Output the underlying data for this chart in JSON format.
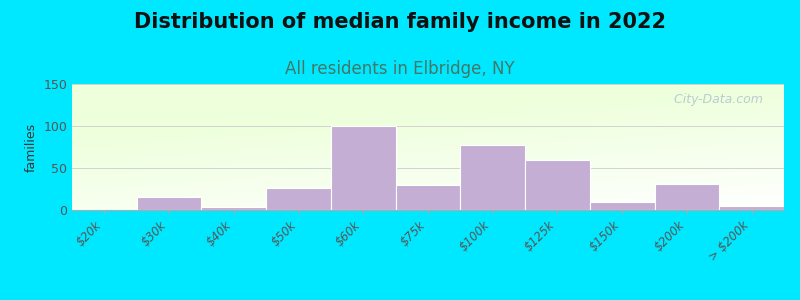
{
  "title": "Distribution of median family income in 2022",
  "subtitle": "All residents in Elbridge, NY",
  "ylabel": "families",
  "categories": [
    "$20k",
    "$30k",
    "$40k",
    "$50k",
    "$60k",
    "$75k",
    "$100k",
    "$125k",
    "$150k",
    "$200k",
    "> $200k"
  ],
  "values": [
    0,
    15,
    4,
    26,
    100,
    30,
    77,
    59,
    10,
    31,
    5
  ],
  "bar_color": "#c4aed4",
  "bar_edge_color": "#c4aed4",
  "ylim": [
    0,
    150
  ],
  "yticks": [
    0,
    50,
    100,
    150
  ],
  "background_outer": "#00e8ff",
  "title_fontsize": 15,
  "subtitle_fontsize": 12,
  "subtitle_color": "#447766",
  "watermark_text": "  City-Data.com",
  "watermark_color": "#aabbcc"
}
